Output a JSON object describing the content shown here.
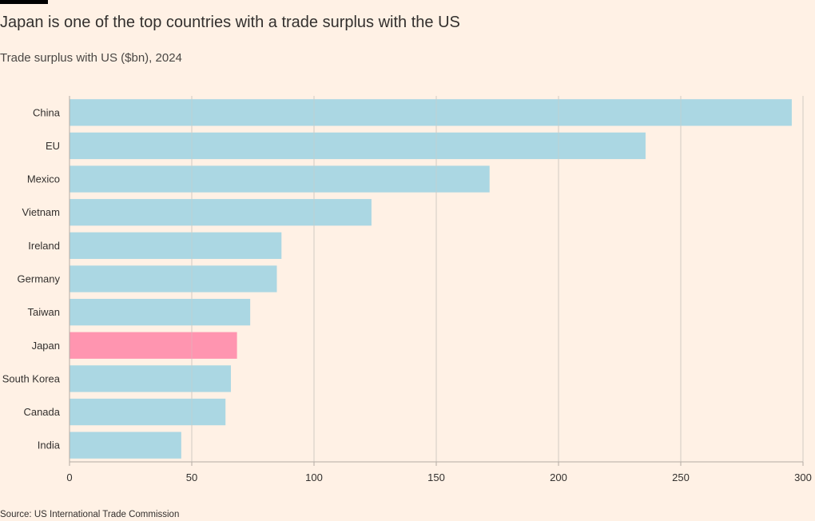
{
  "header": {
    "title": "Japan is one of the top countries with a trade surplus with the US",
    "subtitle": "Trade surplus with US ($bn), 2024"
  },
  "footer": {
    "source": "Source: US International Trade Commission"
  },
  "chart_data": {
    "type": "bar",
    "orientation": "horizontal",
    "title": "Japan is one of the top countries with a trade surplus with the US",
    "subtitle": "Trade surplus with US ($bn), 2024",
    "xlabel": "",
    "ylabel": "",
    "xlim": [
      0,
      300
    ],
    "xticks": [
      0,
      50,
      100,
      150,
      200,
      250,
      300
    ],
    "grid": true,
    "categories": [
      "China",
      "EU",
      "Mexico",
      "Vietnam",
      "Ireland",
      "Germany",
      "Taiwan",
      "Japan",
      "South Korea",
      "Canada",
      "India"
    ],
    "values": [
      295.4,
      235.6,
      171.8,
      123.5,
      86.7,
      84.8,
      73.9,
      68.5,
      66.0,
      63.8,
      45.7
    ],
    "highlight": "Japan",
    "colors": {
      "default": "#A6D5E3",
      "highlight": "#FF8FAD",
      "grid": "#D2CCC3",
      "axis": "#B3ACA4"
    }
  }
}
